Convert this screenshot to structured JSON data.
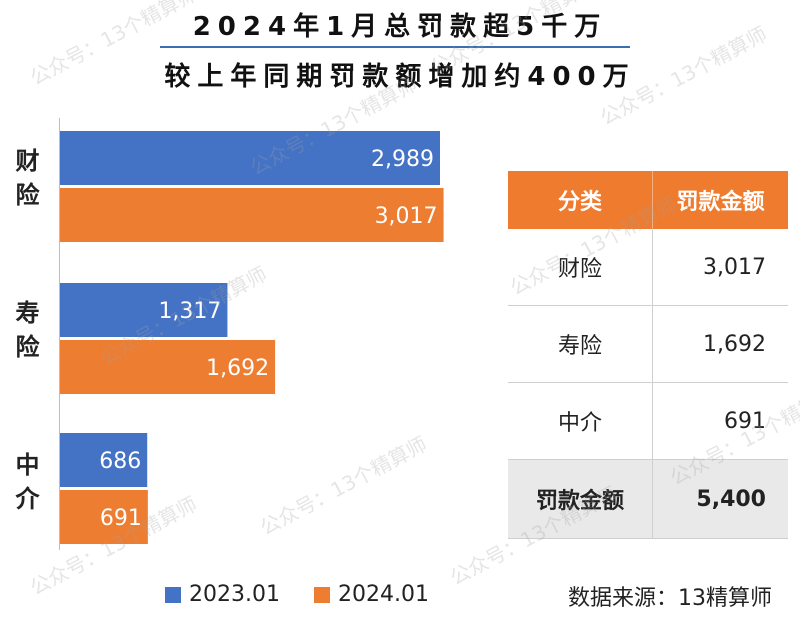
{
  "header": {
    "title_line1": "2024年1月总罚款超5千万",
    "title_line2": "较上年同期罚款额增加约400万"
  },
  "chart_data": {
    "type": "bar",
    "orientation": "horizontal",
    "categories": [
      "财险",
      "寿险",
      "中介"
    ],
    "series": [
      {
        "name": "2023.01",
        "color": "#4472c4",
        "values": [
          2989,
          1317,
          686
        ]
      },
      {
        "name": "2024.01",
        "color": "#ed7d31",
        "values": [
          3017,
          1692,
          691
        ]
      }
    ],
    "data_labels": {
      "2023.01": [
        "2,989",
        "1,317",
        "686"
      ],
      "2024.01": [
        "3,017",
        "1,692",
        "691"
      ]
    },
    "xlim": [
      0,
      3200
    ],
    "grid": false,
    "legend_position": "bottom"
  },
  "table": {
    "headers": [
      "分类",
      "罚款金额"
    ],
    "rows": [
      {
        "category": "财险",
        "amount": "3,017"
      },
      {
        "category": "寿险",
        "amount": "1,692"
      },
      {
        "category": "中介",
        "amount": "691"
      }
    ],
    "total": {
      "category": "罚款金额",
      "amount": "5,400"
    },
    "header_color": "#ef7b2e"
  },
  "legend": {
    "items": [
      {
        "label": "2023.01",
        "color": "#4472c4"
      },
      {
        "label": "2024.01",
        "color": "#ed7d31"
      }
    ]
  },
  "source_text": "数据来源：13精算师",
  "watermark_text": "公众号：13个精算师"
}
